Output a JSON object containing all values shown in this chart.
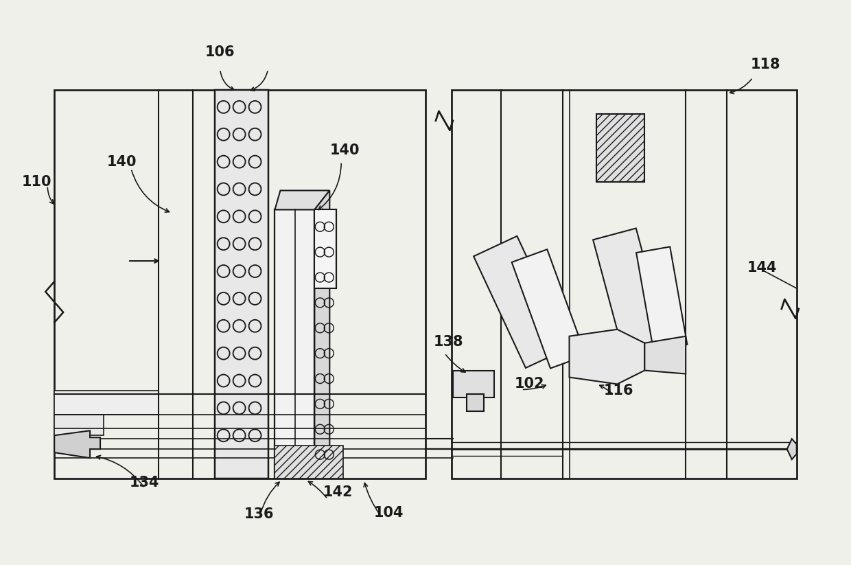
{
  "bg_color": "#f0f0eb",
  "line_color": "#1a1a1a",
  "lw": 1.5,
  "font_size": 15,
  "fig_w": 12.4,
  "fig_h": 8.23,
  "dpi": 100
}
